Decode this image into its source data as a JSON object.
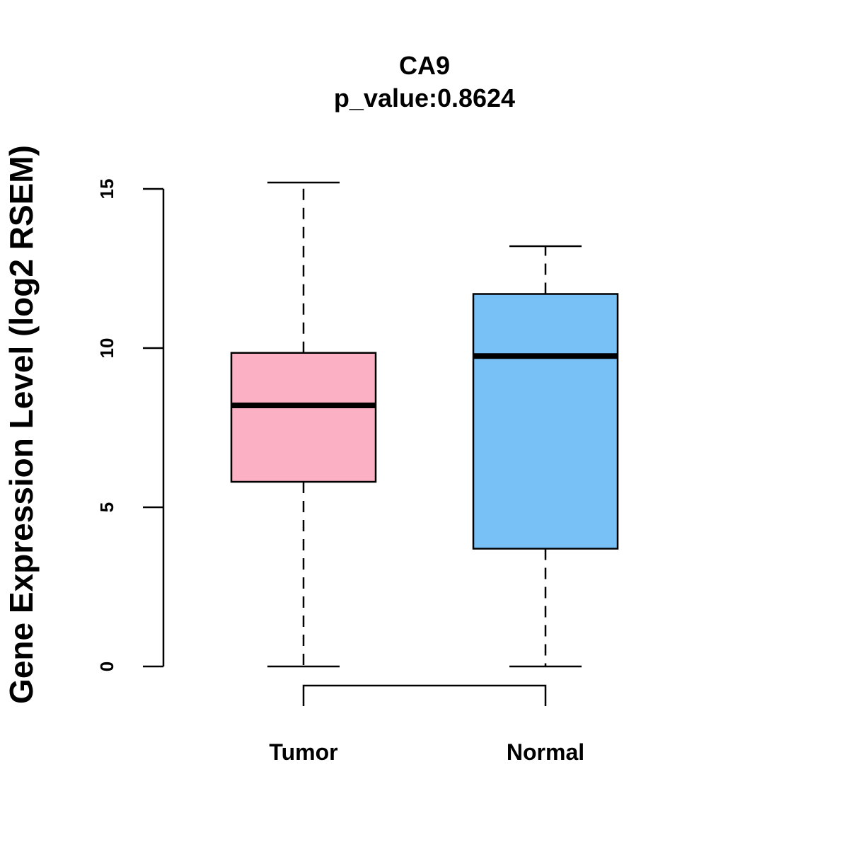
{
  "chart_data": {
    "type": "box",
    "title": "CA9",
    "subtitle": "p_value:0.8624",
    "xlabel": "",
    "ylabel": "Gene Expression Level (log2 RSEM)",
    "ylim": [
      0,
      15
    ],
    "yticks": [
      0,
      5,
      10,
      15
    ],
    "categories": [
      "Tumor",
      "Normal"
    ],
    "boxes": [
      {
        "name": "Tumor",
        "whisker_low": 0,
        "q1": 5.8,
        "median": 8.2,
        "q3": 9.85,
        "whisker_high": 15.2,
        "color": "#FBB1C3"
      },
      {
        "name": "Normal",
        "whisker_low": 0,
        "q1": 3.7,
        "median": 9.75,
        "q3": 11.7,
        "whisker_high": 13.2,
        "color": "#78C1F7"
      }
    ],
    "comparison_bracket": [
      "Tumor",
      "Normal"
    ],
    "grid": false,
    "legend": "none"
  }
}
